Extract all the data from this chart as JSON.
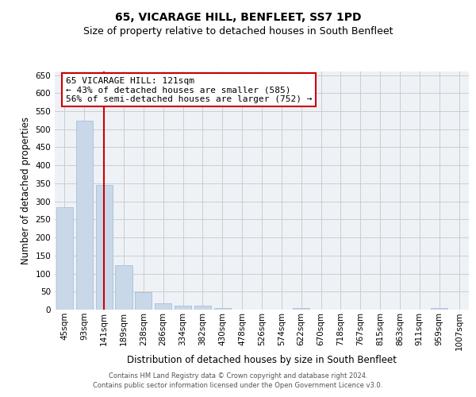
{
  "title": "65, VICARAGE HILL, BENFLEET, SS7 1PD",
  "subtitle": "Size of property relative to detached houses in South Benfleet",
  "xlabel": "Distribution of detached houses by size in South Benfleet",
  "ylabel": "Number of detached properties",
  "categories": [
    "45sqm",
    "93sqm",
    "141sqm",
    "189sqm",
    "238sqm",
    "286sqm",
    "334sqm",
    "382sqm",
    "430sqm",
    "478sqm",
    "526sqm",
    "574sqm",
    "622sqm",
    "670sqm",
    "718sqm",
    "767sqm",
    "815sqm",
    "863sqm",
    "911sqm",
    "959sqm",
    "1007sqm"
  ],
  "values": [
    283,
    524,
    346,
    123,
    49,
    18,
    11,
    11,
    5,
    0,
    0,
    0,
    5,
    0,
    0,
    0,
    0,
    0,
    0,
    5,
    0
  ],
  "bar_color": "#c8d8e8",
  "bar_edgecolor": "#a8c0d8",
  "redline_index": 2,
  "ylim": [
    0,
    660
  ],
  "yticks": [
    0,
    50,
    100,
    150,
    200,
    250,
    300,
    350,
    400,
    450,
    500,
    550,
    600,
    650
  ],
  "annotation_text": "65 VICARAGE HILL: 121sqm\n← 43% of detached houses are smaller (585)\n56% of semi-detached houses are larger (752) →",
  "annotation_box_facecolor": "#ffffff",
  "annotation_box_edgecolor": "#cc0000",
  "bg_color": "#eef2f7",
  "footer_line1": "Contains HM Land Registry data © Crown copyright and database right 2024.",
  "footer_line2": "Contains public sector information licensed under the Open Government Licence v3.0.",
  "title_fontsize": 10,
  "subtitle_fontsize": 9,
  "xlabel_fontsize": 8.5,
  "ylabel_fontsize": 8.5,
  "tick_fontsize": 7.5,
  "annotation_fontsize": 8
}
